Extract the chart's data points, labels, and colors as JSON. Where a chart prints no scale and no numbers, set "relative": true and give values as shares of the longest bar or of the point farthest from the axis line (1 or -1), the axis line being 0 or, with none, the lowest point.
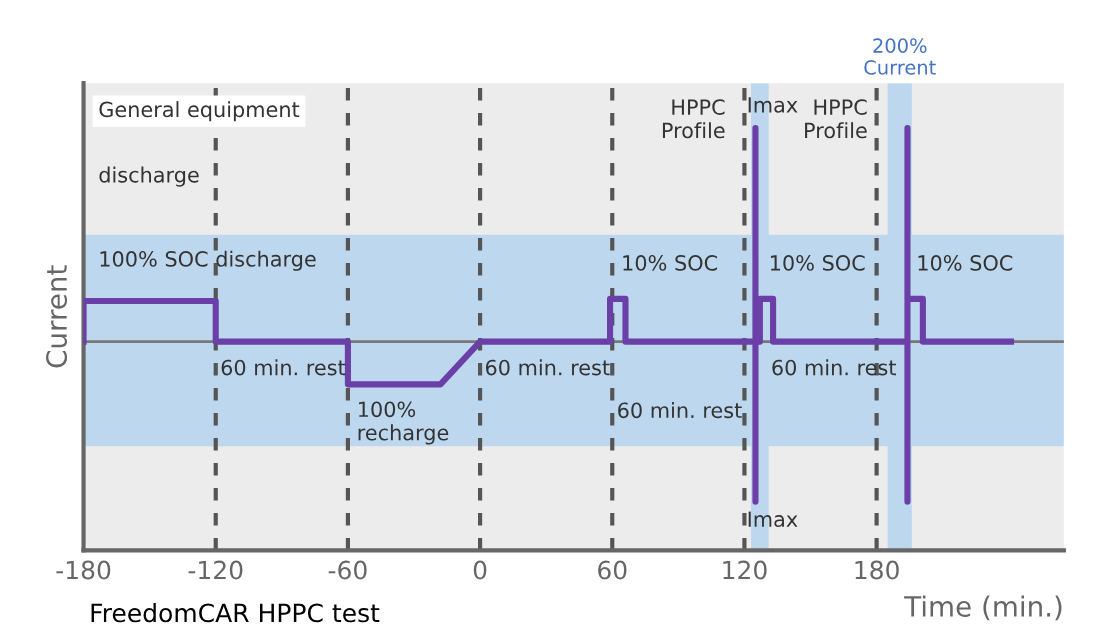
{
  "chart_data": {
    "type": "line",
    "relative": true,
    "ylabel": "Current",
    "xlabel": "Time (min.)",
    "xlim": [
      -180,
      265
    ],
    "xticks": [
      -180,
      -120,
      -60,
      0,
      60,
      120,
      180
    ],
    "series": [
      {
        "color": "#6b3fa8",
        "x": [
          -180,
          -180,
          -120,
          -120,
          -60,
          -60,
          -18,
          0,
          59,
          59,
          66,
          66,
          125,
          125,
          125,
          125,
          127,
          127,
          133,
          133,
          194,
          194,
          194,
          194,
          194,
          201,
          201,
          241
        ],
        "values": [
          0,
          0.19,
          0.19,
          0,
          0,
          -0.2,
          -0.2,
          0,
          0,
          0.2,
          0.2,
          0,
          0,
          1,
          -0.75,
          0,
          0,
          0.2,
          0.2,
          0,
          0,
          1,
          -0.75,
          0,
          0.2,
          0.2,
          0,
          0
        ]
      }
    ],
    "ref_lines": [
      {
        "axis": "y",
        "value": 0,
        "color": "#777777",
        "line_style": "solid"
      },
      {
        "axis": "x",
        "value": -120,
        "color": "#555555",
        "line_style": "dashed"
      },
      {
        "axis": "x",
        "value": -60,
        "color": "#555555",
        "line_style": "dashed"
      },
      {
        "axis": "x",
        "value": 0,
        "color": "#555555",
        "line_style": "dashed"
      },
      {
        "axis": "x",
        "value": 60,
        "color": "#555555",
        "line_style": "dashed"
      },
      {
        "axis": "x",
        "value": 120,
        "color": "#555555",
        "line_style": "dashed"
      },
      {
        "axis": "x",
        "value": 180,
        "color": "#555555",
        "line_style": "dashed"
      }
    ],
    "bands": [
      {
        "axis": "y",
        "from": -0.49,
        "to": 0.5,
        "color": "#bdd7ee"
      },
      {
        "axis": "x",
        "from": 123,
        "to": 131,
        "color": "#bdd7ee"
      },
      {
        "axis": "x",
        "from": 185,
        "to": 196,
        "color": "#bdd7ee",
        "label": "200%\nCurrent"
      }
    ],
    "annotations": [
      "General equipment",
      "discharge",
      "100% SOC discharge",
      {
        "text": "60 min. rest",
        "x": -118,
        "y": -0.13
      },
      {
        "text": "100%\nrecharge",
        "x": -56,
        "y": -0.38
      },
      {
        "text": "60 min. rest",
        "x": 2,
        "y": -0.13
      },
      {
        "text": "60 min. rest",
        "x": 62,
        "y": -0.33
      },
      {
        "text": "10% SOC",
        "x": 64,
        "y": 0.36
      },
      {
        "text": "10% SOC",
        "x": 131,
        "y": 0.36
      },
      {
        "text": "10% SOC",
        "x": 198,
        "y": 0.36
      },
      {
        "text": "60 min. rest",
        "x": 132,
        "y": -0.13
      },
      "HPPC\nProfile",
      "HPPC\nProfile",
      {
        "text": "Imax",
        "x": 121,
        "y": 1.1
      },
      {
        "text": "Imax",
        "x": 121,
        "y": -0.84
      },
      "FreedomCAR HPPC test"
    ]
  }
}
